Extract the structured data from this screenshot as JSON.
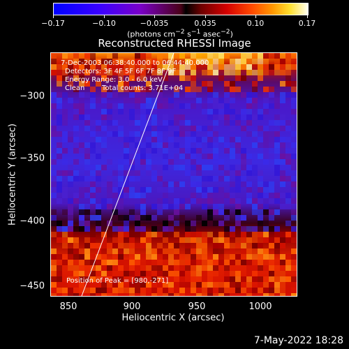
{
  "colorbar": {
    "ticks": [
      "−0.17",
      "−0.10",
      "−0.035",
      "0.035",
      "0.10",
      "0.17"
    ],
    "units_main": "(photons cm",
    "units_exp1": "−2",
    "units_mid": " s",
    "units_exp2": "−1",
    "units_tail": " asec",
    "units_exp3": "−2",
    "units_close": ")"
  },
  "title": "Reconstructed RHESSI Image",
  "overlay": {
    "time_range": "7-Dec-2003 06:38:40.000 to 06:44:40.000",
    "detectors": "Detectors: 3F 4F 5F 6F 7F 8F 9F",
    "energy": "Energy Range: 3.0 - 6.0 keV",
    "method": "Clean",
    "counts": "Total counts: 3.71E+04",
    "peak": "Position of Peak = [980,-271]"
  },
  "axes": {
    "x_label": "Heliocentric X (arcsec)",
    "y_label": "Heliocentric Y (arcsec)",
    "x_ticks": [
      "850",
      "900",
      "950",
      "1000"
    ],
    "y_ticks": [
      "−300",
      "−350",
      "−400",
      "−450"
    ]
  },
  "footer": {
    "date": "7-May-2022 18:28"
  },
  "colors": {
    "min": "#0000ff",
    "mid": "#000000",
    "max": "#ffffe0"
  }
}
